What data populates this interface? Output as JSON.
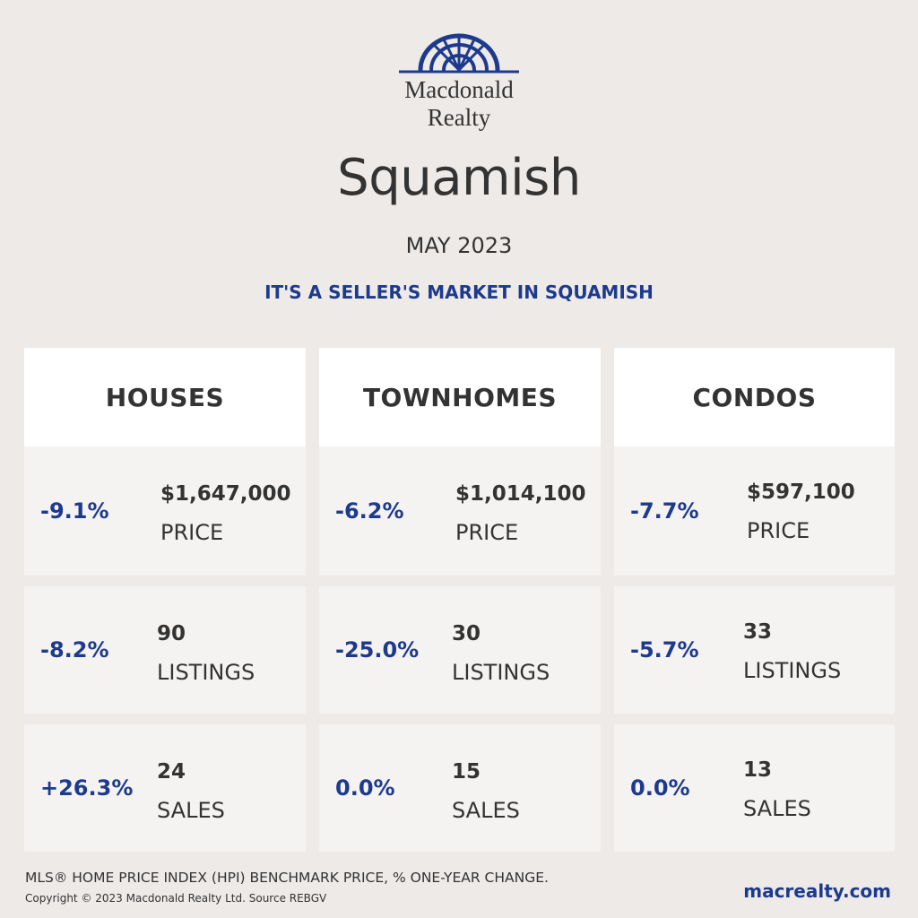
{
  "brand": {
    "name_line1": "Macdonald",
    "name_line2": "Realty",
    "logo_icon": "sunburst-arch-logo-icon",
    "accent_color": "#1d3a8c",
    "website": "macrealty.com"
  },
  "header": {
    "city": "Squamish",
    "period": "MAY 2023",
    "tagline": "IT'S A SELLER'S MARKET IN SQUAMISH"
  },
  "columns": [
    {
      "title": "HOUSES",
      "stats": [
        {
          "change": "-9.1%",
          "value": "$1,647,000",
          "label": "PRICE"
        },
        {
          "change": "-8.2%",
          "value": "90",
          "label": "LISTINGS"
        },
        {
          "change": "+26.3%",
          "value": "24",
          "label": "SALES"
        }
      ]
    },
    {
      "title": "TOWNHOMES",
      "stats": [
        {
          "change": "-6.2%",
          "value": "$1,014,100",
          "label": "PRICE"
        },
        {
          "change": "-25.0%",
          "value": "30",
          "label": "LISTINGS"
        },
        {
          "change": "0.0%",
          "value": "15",
          "label": "SALES"
        }
      ]
    },
    {
      "title": "CONDOS",
      "stats": [
        {
          "change": "-7.7%",
          "value": "$597,100",
          "label": "PRICE"
        },
        {
          "change": "-5.7%",
          "value": "33",
          "label": "LISTINGS"
        },
        {
          "change": "0.0%",
          "value": "13",
          "label": "SALES"
        }
      ]
    }
  ],
  "footer": {
    "note": "MLS® HOME PRICE INDEX (HPI) BENCHMARK PRICE, % ONE-YEAR CHANGE.",
    "copyright": "Copyright © 2023 Macdonald Realty Ltd. Source REBGV"
  }
}
